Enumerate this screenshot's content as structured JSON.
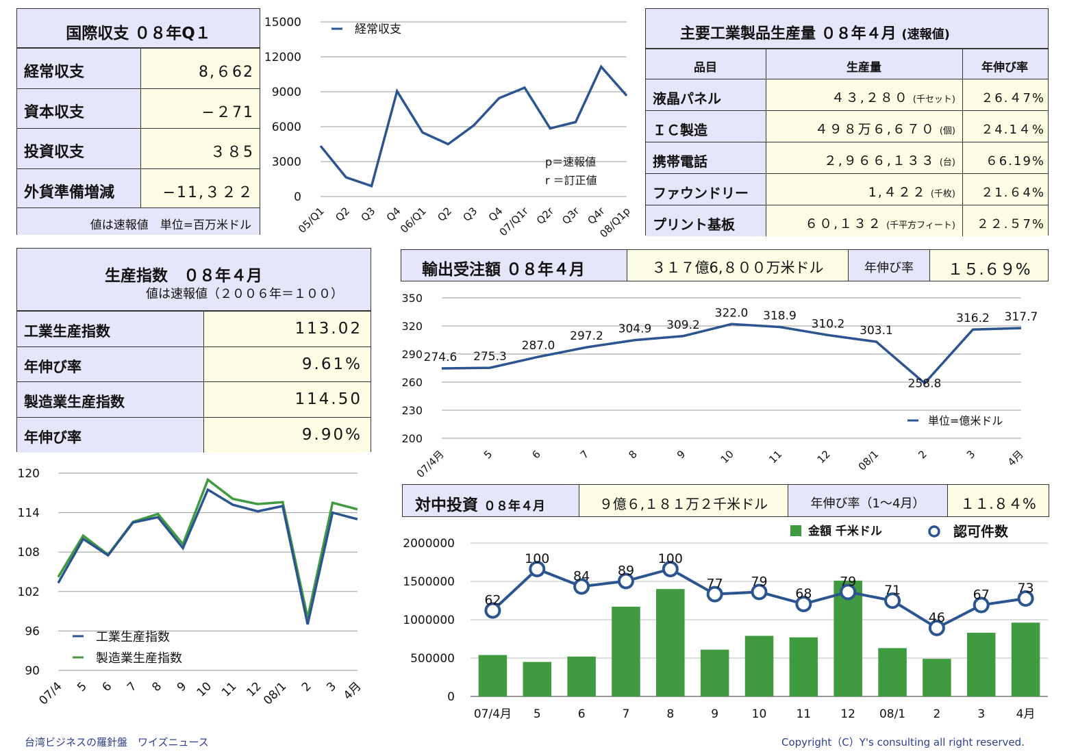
{
  "bop": {
    "title": "国際収支 ０８年Q１",
    "rows": [
      {
        "label": "経常収支",
        "value": "8,６62"
      },
      {
        "label": "資本収支",
        "value": "−２71"
      },
      {
        "label": "投資収支",
        "value": "３８5"
      },
      {
        "label": "外貨準備増減",
        "value": "−11,３２２"
      }
    ],
    "note": "値は速報値　単位=百万米ドル"
  },
  "production": {
    "title": "主要工業製品生産量 ０８年４月",
    "title_suffix": "(速報値)",
    "headers": [
      "品目",
      "生産量",
      "年伸び率"
    ],
    "rows": [
      {
        "item": "液晶パネル",
        "amount": "４３,２８０",
        "unit": "(千セット)",
        "growth": "２6.４7%"
      },
      {
        "item": "ＩＣ製造",
        "amount": "４９８万６,６７０",
        "unit": "(個)",
        "growth": "２4.1４%"
      },
      {
        "item": "携帯電話",
        "amount": "２,９６６,１３３",
        "unit": "(台)",
        "growth": "６6.19%"
      },
      {
        "item": "ファウンドリー",
        "amount": "1,４２２",
        "unit": "(千枚)",
        "growth": "２1.６4%"
      },
      {
        "item": "プリント基板",
        "amount": "６０,１３２",
        "unit": "(千平方フィート)",
        "growth": "２２.５7%"
      }
    ]
  },
  "index": {
    "title": "生産指数　０８年４月",
    "subtitle": "値は速報値（２００６年＝１００）",
    "rows": [
      {
        "label": "工業生産指数",
        "value": "113.02"
      },
      {
        "label": "年伸び率",
        "value": "9.61%"
      },
      {
        "label": "製造業生産指数",
        "value": "114.50"
      },
      {
        "label": "年伸び率",
        "value": "9.90%"
      }
    ]
  },
  "export": {
    "title": "輸出受注額 ０８年４月",
    "amount": "３１７億6,８００万米ドル",
    "growth_label": "年伸び率",
    "growth": "１５.６９%"
  },
  "invest": {
    "title": "対中投資",
    "title_sub": "０８年４月",
    "amount": "９億６,１８１万２千米ドル",
    "growth_label": "年伸び率（1〜4月）",
    "growth": "１１.８４%"
  },
  "footer": {
    "left": "台湾ビジネスの羅針盤　ワイズニュース",
    "right": "Copyright（C）Y's consulting all right reserved."
  },
  "colors": {
    "navy": "#2b5490",
    "green": "#3f9a40",
    "header": "#e6e6fa",
    "value_bg": "#fdfde6"
  },
  "chart_data": [
    {
      "type": "line",
      "categories": [
        "05/Q1",
        "Q2",
        "Q3",
        "Q4",
        "06/Q1",
        "Q2",
        "Q3",
        "Q4",
        "07/Q1r",
        "Q2r",
        "Q3r",
        "Q4r",
        "08/Q1p"
      ],
      "series": [
        {
          "name": "経常収支",
          "values": [
            4350,
            1650,
            900,
            9050,
            5500,
            4500,
            6100,
            8450,
            9350,
            5850,
            6400,
            11150,
            8662
          ]
        }
      ],
      "ylim": [
        0,
        15000
      ],
      "yticks": [
        "0",
        "3000",
        "6000",
        "9000",
        "12000",
        "15000"
      ],
      "annotations": [
        "p＝速報値",
        "r ＝訂正値"
      ]
    },
    {
      "type": "line",
      "categories": [
        "07/4月",
        "5",
        "6",
        "7",
        "8",
        "9",
        "10",
        "11",
        "12",
        "08/1",
        "2",
        "3",
        "4月"
      ],
      "series": [
        {
          "name": "単位=億米ドル",
          "values": [
            274.6,
            275.3,
            287.0,
            297.2,
            304.9,
            309.2,
            322.0,
            318.9,
            310.2,
            303.1,
            258.8,
            316.2,
            317.7
          ]
        }
      ],
      "ylim": [
        200,
        350
      ],
      "yticks": [
        "200",
        "230",
        "260",
        "290",
        "320",
        "350"
      ]
    },
    {
      "type": "line",
      "categories": [
        "07/4",
        "5",
        "6",
        "7",
        "8",
        "9",
        "10",
        "11",
        "12",
        "08/1",
        "2",
        "3",
        "4月"
      ],
      "series": [
        {
          "name": "工業生産指数",
          "values": [
            103.3,
            110.0,
            107.5,
            112.5,
            113.3,
            108.6,
            117.5,
            115.2,
            114.2,
            115.0,
            97.0,
            114.0,
            113.0
          ]
        },
        {
          "name": "製造業生産指数",
          "values": [
            104.2,
            110.5,
            107.6,
            112.6,
            113.8,
            109.2,
            119.0,
            116.1,
            115.3,
            115.6,
            98.0,
            115.5,
            114.5
          ]
        }
      ],
      "ylim": [
        90,
        120
      ],
      "yticks": [
        "90",
        "96",
        "102",
        "108",
        "114",
        "120"
      ]
    },
    {
      "type": "bar",
      "categories": [
        "07/4月",
        "5",
        "6",
        "7",
        "8",
        "9",
        "10",
        "11",
        "12",
        "08/1",
        "2",
        "3",
        "4月"
      ],
      "series": [
        {
          "name": "金額 千米ドル",
          "values": [
            540000,
            450000,
            520000,
            1170000,
            1400000,
            610000,
            790000,
            770000,
            1510000,
            630000,
            490000,
            830000,
            962000
          ]
        },
        {
          "name": "認可件数",
          "values": [
            62,
            100,
            84,
            89,
            100,
            77,
            79,
            68,
            79,
            71,
            46,
            67,
            73
          ]
        }
      ],
      "ylim": [
        0,
        2000000
      ],
      "yticks": [
        "0",
        "500000",
        "1000000",
        "1500000",
        "2000000"
      ]
    }
  ]
}
